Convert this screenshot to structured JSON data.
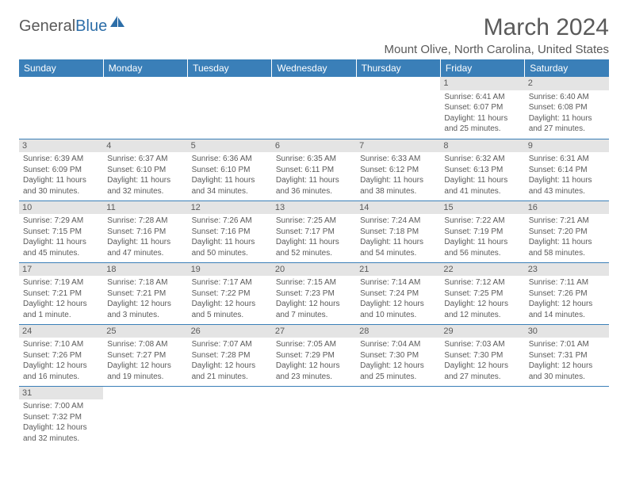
{
  "logo": {
    "text1": "General",
    "text2": "Blue"
  },
  "title": "March 2024",
  "location": "Mount Olive, North Carolina, United States",
  "colors": {
    "header_bg": "#3a7fb8",
    "header_fg": "#ffffff",
    "daynum_bg": "#e4e4e4",
    "text": "#5a5a5a",
    "rule": "#3a7fb8"
  },
  "daysOfWeek": [
    "Sunday",
    "Monday",
    "Tuesday",
    "Wednesday",
    "Thursday",
    "Friday",
    "Saturday"
  ],
  "weeks": [
    [
      null,
      null,
      null,
      null,
      null,
      {
        "n": "1",
        "sr": "Sunrise: 6:41 AM",
        "ss": "Sunset: 6:07 PM",
        "dl": "Daylight: 11 hours and 25 minutes."
      },
      {
        "n": "2",
        "sr": "Sunrise: 6:40 AM",
        "ss": "Sunset: 6:08 PM",
        "dl": "Daylight: 11 hours and 27 minutes."
      }
    ],
    [
      {
        "n": "3",
        "sr": "Sunrise: 6:39 AM",
        "ss": "Sunset: 6:09 PM",
        "dl": "Daylight: 11 hours and 30 minutes."
      },
      {
        "n": "4",
        "sr": "Sunrise: 6:37 AM",
        "ss": "Sunset: 6:10 PM",
        "dl": "Daylight: 11 hours and 32 minutes."
      },
      {
        "n": "5",
        "sr": "Sunrise: 6:36 AM",
        "ss": "Sunset: 6:10 PM",
        "dl": "Daylight: 11 hours and 34 minutes."
      },
      {
        "n": "6",
        "sr": "Sunrise: 6:35 AM",
        "ss": "Sunset: 6:11 PM",
        "dl": "Daylight: 11 hours and 36 minutes."
      },
      {
        "n": "7",
        "sr": "Sunrise: 6:33 AM",
        "ss": "Sunset: 6:12 PM",
        "dl": "Daylight: 11 hours and 38 minutes."
      },
      {
        "n": "8",
        "sr": "Sunrise: 6:32 AM",
        "ss": "Sunset: 6:13 PM",
        "dl": "Daylight: 11 hours and 41 minutes."
      },
      {
        "n": "9",
        "sr": "Sunrise: 6:31 AM",
        "ss": "Sunset: 6:14 PM",
        "dl": "Daylight: 11 hours and 43 minutes."
      }
    ],
    [
      {
        "n": "10",
        "sr": "Sunrise: 7:29 AM",
        "ss": "Sunset: 7:15 PM",
        "dl": "Daylight: 11 hours and 45 minutes."
      },
      {
        "n": "11",
        "sr": "Sunrise: 7:28 AM",
        "ss": "Sunset: 7:16 PM",
        "dl": "Daylight: 11 hours and 47 minutes."
      },
      {
        "n": "12",
        "sr": "Sunrise: 7:26 AM",
        "ss": "Sunset: 7:16 PM",
        "dl": "Daylight: 11 hours and 50 minutes."
      },
      {
        "n": "13",
        "sr": "Sunrise: 7:25 AM",
        "ss": "Sunset: 7:17 PM",
        "dl": "Daylight: 11 hours and 52 minutes."
      },
      {
        "n": "14",
        "sr": "Sunrise: 7:24 AM",
        "ss": "Sunset: 7:18 PM",
        "dl": "Daylight: 11 hours and 54 minutes."
      },
      {
        "n": "15",
        "sr": "Sunrise: 7:22 AM",
        "ss": "Sunset: 7:19 PM",
        "dl": "Daylight: 11 hours and 56 minutes."
      },
      {
        "n": "16",
        "sr": "Sunrise: 7:21 AM",
        "ss": "Sunset: 7:20 PM",
        "dl": "Daylight: 11 hours and 58 minutes."
      }
    ],
    [
      {
        "n": "17",
        "sr": "Sunrise: 7:19 AM",
        "ss": "Sunset: 7:21 PM",
        "dl": "Daylight: 12 hours and 1 minute."
      },
      {
        "n": "18",
        "sr": "Sunrise: 7:18 AM",
        "ss": "Sunset: 7:21 PM",
        "dl": "Daylight: 12 hours and 3 minutes."
      },
      {
        "n": "19",
        "sr": "Sunrise: 7:17 AM",
        "ss": "Sunset: 7:22 PM",
        "dl": "Daylight: 12 hours and 5 minutes."
      },
      {
        "n": "20",
        "sr": "Sunrise: 7:15 AM",
        "ss": "Sunset: 7:23 PM",
        "dl": "Daylight: 12 hours and 7 minutes."
      },
      {
        "n": "21",
        "sr": "Sunrise: 7:14 AM",
        "ss": "Sunset: 7:24 PM",
        "dl": "Daylight: 12 hours and 10 minutes."
      },
      {
        "n": "22",
        "sr": "Sunrise: 7:12 AM",
        "ss": "Sunset: 7:25 PM",
        "dl": "Daylight: 12 hours and 12 minutes."
      },
      {
        "n": "23",
        "sr": "Sunrise: 7:11 AM",
        "ss": "Sunset: 7:26 PM",
        "dl": "Daylight: 12 hours and 14 minutes."
      }
    ],
    [
      {
        "n": "24",
        "sr": "Sunrise: 7:10 AM",
        "ss": "Sunset: 7:26 PM",
        "dl": "Daylight: 12 hours and 16 minutes."
      },
      {
        "n": "25",
        "sr": "Sunrise: 7:08 AM",
        "ss": "Sunset: 7:27 PM",
        "dl": "Daylight: 12 hours and 19 minutes."
      },
      {
        "n": "26",
        "sr": "Sunrise: 7:07 AM",
        "ss": "Sunset: 7:28 PM",
        "dl": "Daylight: 12 hours and 21 minutes."
      },
      {
        "n": "27",
        "sr": "Sunrise: 7:05 AM",
        "ss": "Sunset: 7:29 PM",
        "dl": "Daylight: 12 hours and 23 minutes."
      },
      {
        "n": "28",
        "sr": "Sunrise: 7:04 AM",
        "ss": "Sunset: 7:30 PM",
        "dl": "Daylight: 12 hours and 25 minutes."
      },
      {
        "n": "29",
        "sr": "Sunrise: 7:03 AM",
        "ss": "Sunset: 7:30 PM",
        "dl": "Daylight: 12 hours and 27 minutes."
      },
      {
        "n": "30",
        "sr": "Sunrise: 7:01 AM",
        "ss": "Sunset: 7:31 PM",
        "dl": "Daylight: 12 hours and 30 minutes."
      }
    ],
    [
      {
        "n": "31",
        "sr": "Sunrise: 7:00 AM",
        "ss": "Sunset: 7:32 PM",
        "dl": "Daylight: 12 hours and 32 minutes."
      },
      null,
      null,
      null,
      null,
      null,
      null
    ]
  ]
}
